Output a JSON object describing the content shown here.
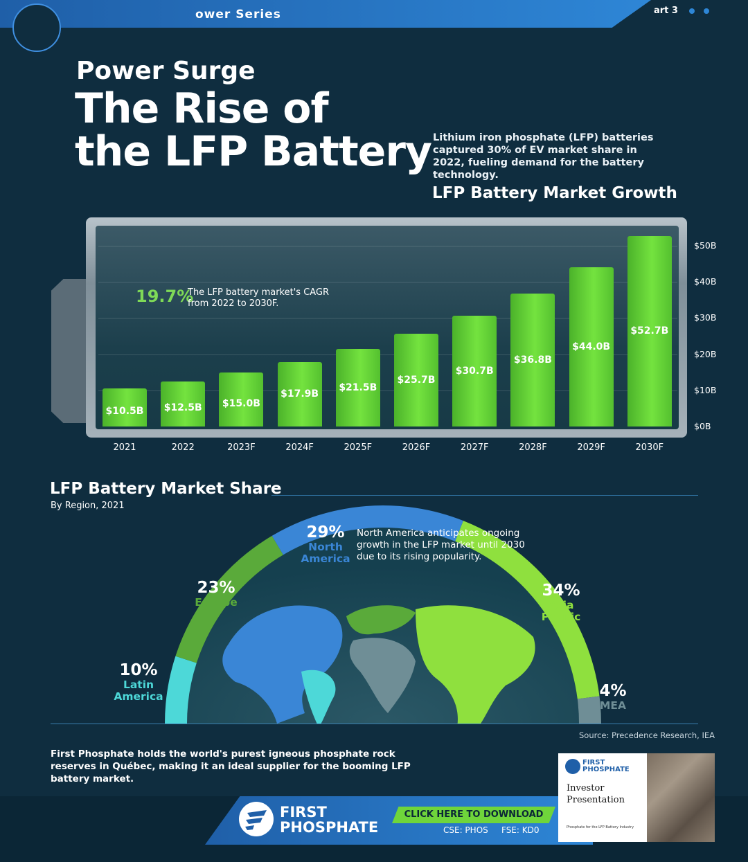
{
  "header": {
    "series_label": "ower Series",
    "part_label": "art 3"
  },
  "headline": {
    "kicker": "Power Surge",
    "title_line1": "The Rise of",
    "title_line2": "the LFP Battery",
    "intro": "Lithium iron phosphate (LFP) batteries captured 30% of EV market share in 2022, fueling demand for the battery technology."
  },
  "growth_chart": {
    "cagr_value": "19.7%",
    "cagr_text": "The LFP battery market's CAGR from 2022 to 2030F."
  },
  "share_section": {
    "title": "LFP Battery Market Share",
    "subtitle": "By Region, 2021",
    "na_note": "North America anticipates ongoing growth in the LFP market until 2030 due to its rising popularity.",
    "source": "Source: Precedence Research, IEA"
  },
  "footer": {
    "note": "First Phosphate holds the world's purest igneous phosphate rock reserves in Québec, making it an ideal supplier for the booming LFP battery market.",
    "brand_line1": "FIRST",
    "brand_line2": "PHOSPHATE",
    "cta_label": "CLICK HERE TO DOWNLOAD",
    "ticker_cse": "CSE: PHOS",
    "ticker_fse": "FSE: KD0",
    "brochure_brand1": "FIRST",
    "brochure_brand2": "PHOSPHATE",
    "brochure_title": "Investor Presentation",
    "brochure_fine": "Phosphate for the LFP Battery Industry"
  },
  "colors": {
    "background": "#0f2d3f",
    "bar_green": "#6fd53b",
    "accent_blue": "#2e86d6",
    "europe": "#5aaa3a",
    "north_america": "#3a86d6",
    "asia_pacific": "#8fe03e",
    "mea": "#6f8e96",
    "latin_america": "#4dd8d8"
  },
  "chart_data": [
    {
      "type": "bar",
      "title": "LFP Battery Market Growth",
      "categories": [
        "2021",
        "2022",
        "2023F",
        "2024F",
        "2025F",
        "2026F",
        "2027F",
        "2028F",
        "2029F",
        "2030F"
      ],
      "values": [
        10.5,
        12.5,
        15.0,
        17.9,
        21.5,
        25.7,
        30.7,
        36.8,
        44.0,
        52.7
      ],
      "value_labels": [
        "$10.5B",
        "$12.5B",
        "$15.0B",
        "$17.9B",
        "$21.5B",
        "$25.7B",
        "$30.7B",
        "$36.8B",
        "$44.0B",
        "$52.7B"
      ],
      "ylim": [
        0,
        50
      ],
      "yticks": [
        "$0B",
        "$10B",
        "$20B",
        "$30B",
        "$40B",
        "$50B"
      ],
      "grid": true
    },
    {
      "type": "pie",
      "title": "LFP Battery Market Share",
      "subtitle": "By Region, 2021",
      "categories": [
        "Latin America",
        "Europe",
        "North America",
        "Asia Pacific",
        "MEA"
      ],
      "category_labels": [
        "Latin\nAmerica",
        "Europe",
        "North\nAmerica",
        "Asia\nPacific",
        "MEA"
      ],
      "values": [
        10,
        23,
        29,
        34,
        4
      ],
      "value_labels": [
        "10%",
        "23%",
        "29%",
        "34%",
        "4%"
      ],
      "colors": [
        "#4dd8d8",
        "#5aaa3a",
        "#3a86d6",
        "#8fe03e",
        "#6f8e96"
      ]
    }
  ]
}
